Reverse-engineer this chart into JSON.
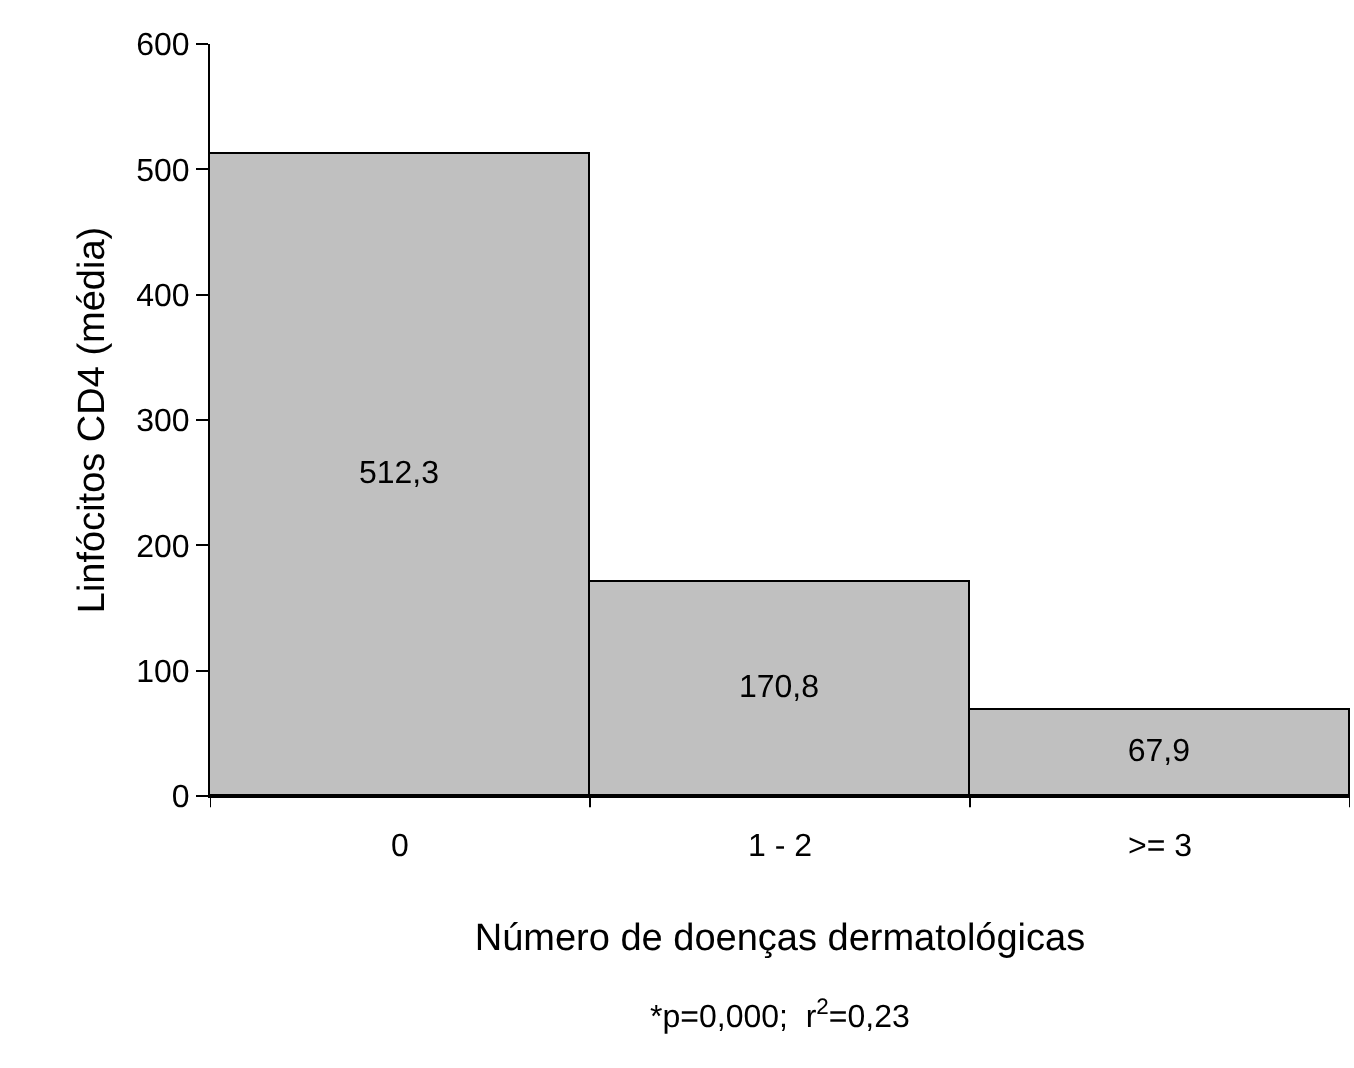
{
  "chart_data": {
    "type": "bar",
    "xlabel": "Número de doenças dermatológicas",
    "ylabel": "Linfócitos CD4 (média)",
    "categories": [
      "0",
      "1 - 2",
      ">= 3"
    ],
    "values": [
      512.3,
      170.8,
      67.9
    ],
    "value_labels": [
      "512,3",
      "170,8",
      "67,9"
    ],
    "color": "#c0c0c0",
    "ylim": [
      0,
      600
    ],
    "yticks": [
      0,
      100,
      200,
      300,
      400,
      500,
      600
    ],
    "annotations": [
      "*p=0,000;  r$^{2}$=0,23"
    ]
  }
}
